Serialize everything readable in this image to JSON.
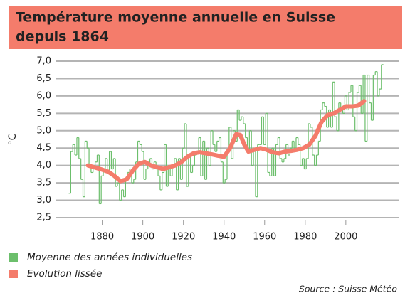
{
  "chart_data": {
    "type": "line",
    "title": [
      "Température moyenne annuelle en Suisse",
      "depuis 1864"
    ],
    "y_label": "°C",
    "source": "Source : Suisse Météo",
    "xlim": [
      1857,
      2026
    ],
    "xticks": [
      1880,
      1900,
      1920,
      1940,
      1960,
      1980,
      2000
    ],
    "ylim": [
      2.5,
      7.0
    ],
    "yticks": [
      {
        "value": 2.5,
        "label": "2,5"
      },
      {
        "value": 3.0,
        "label": "3,0"
      },
      {
        "value": 3.5,
        "label": "3,5"
      },
      {
        "value": 4.0,
        "label": "4,0"
      },
      {
        "value": 4.5,
        "label": "4,5"
      },
      {
        "value": 5.0,
        "label": "5,0"
      },
      {
        "value": 5.5,
        "label": "5,5"
      },
      {
        "value": 6.0,
        "label": "6,0"
      },
      {
        "value": 6.5,
        "label": "6,5"
      },
      {
        "value": 7.0,
        "label": "7,0"
      }
    ],
    "grid": true,
    "series": [
      {
        "name": "Moyenne des années individuelles",
        "color": "#6cbf6c",
        "style": "step",
        "x": [
          1864,
          1865,
          1866,
          1867,
          1868,
          1869,
          1870,
          1871,
          1872,
          1873,
          1874,
          1875,
          1876,
          1877,
          1878,
          1879,
          1880,
          1881,
          1882,
          1883,
          1884,
          1885,
          1886,
          1887,
          1888,
          1889,
          1890,
          1891,
          1892,
          1893,
          1894,
          1895,
          1896,
          1897,
          1898,
          1899,
          1900,
          1901,
          1902,
          1903,
          1904,
          1905,
          1906,
          1907,
          1908,
          1909,
          1910,
          1911,
          1912,
          1913,
          1914,
          1915,
          1916,
          1917,
          1918,
          1919,
          1920,
          1921,
          1922,
          1923,
          1924,
          1925,
          1926,
          1927,
          1928,
          1929,
          1930,
          1931,
          1932,
          1933,
          1934,
          1935,
          1936,
          1937,
          1938,
          1939,
          1940,
          1941,
          1942,
          1943,
          1944,
          1945,
          1946,
          1947,
          1948,
          1949,
          1950,
          1951,
          1952,
          1953,
          1954,
          1955,
          1956,
          1957,
          1958,
          1959,
          1960,
          1961,
          1962,
          1963,
          1964,
          1965,
          1966,
          1967,
          1968,
          1969,
          1970,
          1971,
          1972,
          1973,
          1974,
          1975,
          1976,
          1977,
          1978,
          1979,
          1980,
          1981,
          1982,
          1983,
          1984,
          1985,
          1986,
          1987,
          1988,
          1989,
          1990,
          1991,
          1992,
          1993,
          1994,
          1995,
          1996,
          1997,
          1998,
          1999,
          2000,
          2001,
          2002,
          2003,
          2004,
          2005,
          2006,
          2007,
          2008,
          2009,
          2010,
          2011,
          2012,
          2013,
          2014,
          2015,
          2016,
          2017,
          2018
        ],
        "values": [
          3.2,
          4.4,
          4.6,
          4.3,
          4.8,
          4.2,
          3.6,
          3.1,
          4.7,
          4.5,
          4.0,
          3.8,
          4.0,
          4.1,
          4.3,
          2.9,
          3.7,
          3.9,
          4.2,
          3.8,
          4.4,
          3.9,
          4.2,
          3.4,
          3.5,
          3.0,
          3.3,
          3.1,
          3.6,
          3.8,
          3.9,
          3.5,
          3.6,
          4.1,
          4.7,
          4.6,
          4.4,
          3.6,
          3.9,
          4.0,
          4.2,
          3.9,
          4.1,
          3.9,
          3.7,
          3.3,
          3.8,
          4.6,
          3.4,
          4.0,
          3.7,
          4.0,
          4.2,
          3.3,
          4.2,
          3.6,
          4.5,
          5.2,
          3.4,
          4.3,
          3.8,
          4.0,
          4.3,
          4.4,
          4.8,
          3.7,
          4.7,
          3.6,
          4.5,
          4.0,
          5.0,
          4.6,
          4.4,
          4.7,
          4.8,
          4.1,
          3.5,
          3.6,
          4.4,
          5.1,
          4.2,
          5.0,
          4.7,
          5.6,
          5.3,
          5.4,
          5.2,
          4.8,
          4.4,
          5.0,
          4.0,
          4.5,
          3.1,
          4.6,
          4.6,
          5.4,
          4.6,
          5.5,
          3.8,
          3.7,
          4.5,
          3.7,
          4.6,
          4.8,
          4.2,
          4.1,
          4.2,
          4.6,
          4.3,
          4.5,
          4.7,
          4.5,
          4.8,
          4.6,
          4.0,
          4.2,
          3.9,
          4.2,
          5.2,
          5.1,
          4.3,
          4.0,
          4.3,
          4.7,
          5.6,
          5.8,
          5.7,
          5.1,
          5.6,
          5.1,
          6.4,
          5.4,
          5.0,
          5.8,
          5.6,
          5.5,
          6.0,
          5.6,
          6.1,
          6.3,
          5.4,
          5.0,
          6.1,
          6.3,
          5.5,
          6.6,
          4.7,
          6.6,
          5.8,
          5.3,
          6.6,
          6.7,
          6.0,
          6.2,
          6.9
        ]
      },
      {
        "name": "Evolution lissée",
        "color": "#f47c6b",
        "style": "smooth",
        "x": [
          1873,
          1876,
          1880,
          1883,
          1886,
          1889,
          1892,
          1895,
          1898,
          1901,
          1904,
          1907,
          1910,
          1913,
          1916,
          1919,
          1922,
          1925,
          1928,
          1931,
          1934,
          1937,
          1940,
          1943,
          1946,
          1948,
          1950,
          1952,
          1955,
          1958,
          1961,
          1964,
          1967,
          1970,
          1973,
          1976,
          1979,
          1982,
          1985,
          1988,
          1991,
          1994,
          1997,
          2000,
          2003,
          2006,
          2009
        ],
        "values": [
          4.0,
          3.95,
          3.88,
          3.82,
          3.7,
          3.55,
          3.6,
          3.85,
          4.05,
          4.1,
          4.0,
          3.95,
          3.9,
          3.95,
          4.0,
          4.1,
          4.25,
          4.35,
          4.38,
          4.35,
          4.32,
          4.28,
          4.25,
          4.5,
          4.9,
          4.88,
          4.6,
          4.4,
          4.45,
          4.5,
          4.45,
          4.38,
          4.35,
          4.4,
          4.42,
          4.45,
          4.5,
          4.6,
          4.85,
          5.25,
          5.45,
          5.5,
          5.6,
          5.7,
          5.7,
          5.72,
          5.85
        ]
      }
    ]
  }
}
